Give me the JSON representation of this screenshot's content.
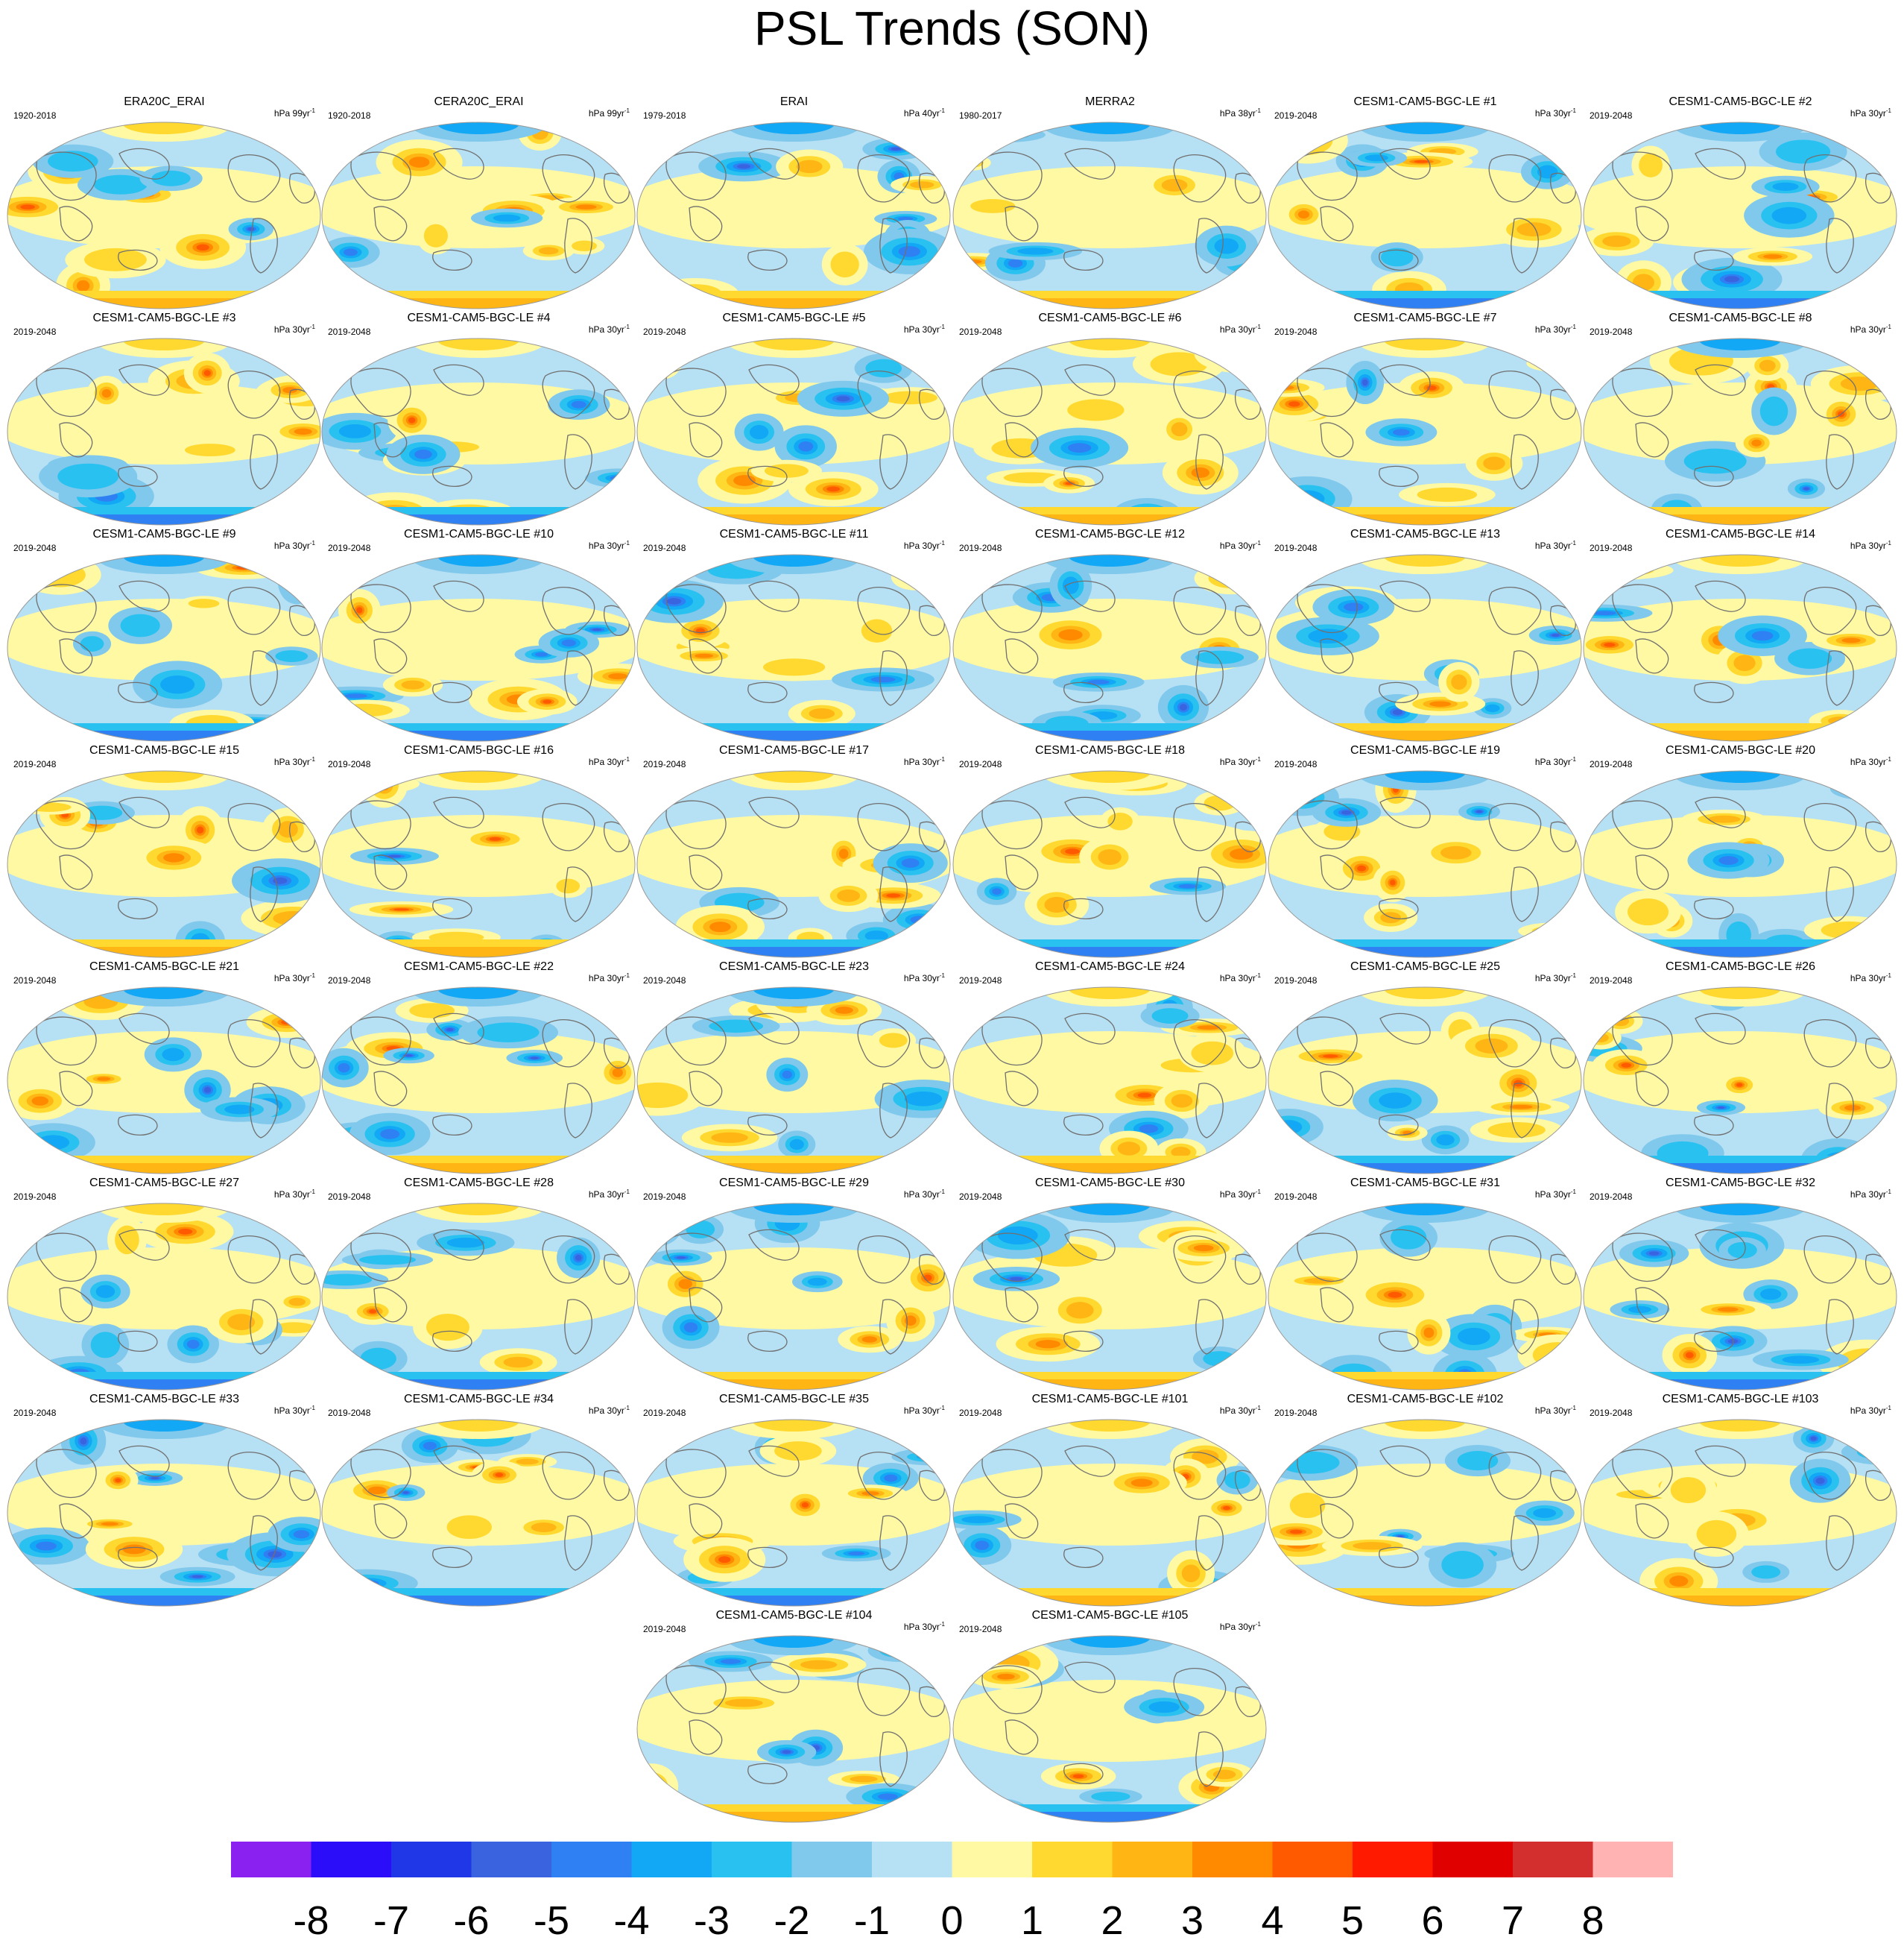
{
  "title": "PSL Trends (SON)",
  "units_label": "hPa",
  "chart_data": {
    "type": "heatmap",
    "description_kind": "grid of filled-contour world maps of sea level pressure trends",
    "colorbar": {
      "ticks": [
        "-8",
        "-7",
        "-6",
        "-5",
        "-4",
        "-3",
        "-2",
        "-1",
        "0",
        "1",
        "2",
        "3",
        "4",
        "5",
        "6",
        "7",
        "8"
      ],
      "colors": [
        "#8a21f0",
        "#2b0dfa",
        "#1f37e6",
        "#3a63e0",
        "#2f80f2",
        "#12a8f5",
        "#29c2f0",
        "#80c8ec",
        "#b6e0f3",
        "#fff9a3",
        "#ffd92f",
        "#ffb514",
        "#ff8a00",
        "#ff5a00",
        "#ff1a00",
        "#e00000",
        "#d32f2f",
        "#ffb3b3"
      ]
    },
    "panels": [
      {
        "name": "ERA20C_ERAI",
        "period": "1920-2018",
        "unit_scale": "99yr"
      },
      {
        "name": "CERA20C_ERAI",
        "period": "1920-2018",
        "unit_scale": "99yr"
      },
      {
        "name": "ERAI",
        "period": "1979-2018",
        "unit_scale": "40yr"
      },
      {
        "name": "MERRA2",
        "period": "1980-2017",
        "unit_scale": "38yr"
      },
      {
        "name": "CESM1-CAM5-BGC-LE #1",
        "period": "2019-2048",
        "unit_scale": "30yr"
      },
      {
        "name": "CESM1-CAM5-BGC-LE #2",
        "period": "2019-2048",
        "unit_scale": "30yr"
      },
      {
        "name": "CESM1-CAM5-BGC-LE #3",
        "period": "2019-2048",
        "unit_scale": "30yr"
      },
      {
        "name": "CESM1-CAM5-BGC-LE #4",
        "period": "2019-2048",
        "unit_scale": "30yr"
      },
      {
        "name": "CESM1-CAM5-BGC-LE #5",
        "period": "2019-2048",
        "unit_scale": "30yr"
      },
      {
        "name": "CESM1-CAM5-BGC-LE #6",
        "period": "2019-2048",
        "unit_scale": "30yr"
      },
      {
        "name": "CESM1-CAM5-BGC-LE #7",
        "period": "2019-2048",
        "unit_scale": "30yr"
      },
      {
        "name": "CESM1-CAM5-BGC-LE #8",
        "period": "2019-2048",
        "unit_scale": "30yr"
      },
      {
        "name": "CESM1-CAM5-BGC-LE #9",
        "period": "2019-2048",
        "unit_scale": "30yr"
      },
      {
        "name": "CESM1-CAM5-BGC-LE #10",
        "period": "2019-2048",
        "unit_scale": "30yr"
      },
      {
        "name": "CESM1-CAM5-BGC-LE #11",
        "period": "2019-2048",
        "unit_scale": "30yr"
      },
      {
        "name": "CESM1-CAM5-BGC-LE #12",
        "period": "2019-2048",
        "unit_scale": "30yr"
      },
      {
        "name": "CESM1-CAM5-BGC-LE #13",
        "period": "2019-2048",
        "unit_scale": "30yr"
      },
      {
        "name": "CESM1-CAM5-BGC-LE #14",
        "period": "2019-2048",
        "unit_scale": "30yr"
      },
      {
        "name": "CESM1-CAM5-BGC-LE #15",
        "period": "2019-2048",
        "unit_scale": "30yr"
      },
      {
        "name": "CESM1-CAM5-BGC-LE #16",
        "period": "2019-2048",
        "unit_scale": "30yr"
      },
      {
        "name": "CESM1-CAM5-BGC-LE #17",
        "period": "2019-2048",
        "unit_scale": "30yr"
      },
      {
        "name": "CESM1-CAM5-BGC-LE #18",
        "period": "2019-2048",
        "unit_scale": "30yr"
      },
      {
        "name": "CESM1-CAM5-BGC-LE #19",
        "period": "2019-2048",
        "unit_scale": "30yr"
      },
      {
        "name": "CESM1-CAM5-BGC-LE #20",
        "period": "2019-2048",
        "unit_scale": "30yr"
      },
      {
        "name": "CESM1-CAM5-BGC-LE #21",
        "period": "2019-2048",
        "unit_scale": "30yr"
      },
      {
        "name": "CESM1-CAM5-BGC-LE #22",
        "period": "2019-2048",
        "unit_scale": "30yr"
      },
      {
        "name": "CESM1-CAM5-BGC-LE #23",
        "period": "2019-2048",
        "unit_scale": "30yr"
      },
      {
        "name": "CESM1-CAM5-BGC-LE #24",
        "period": "2019-2048",
        "unit_scale": "30yr"
      },
      {
        "name": "CESM1-CAM5-BGC-LE #25",
        "period": "2019-2048",
        "unit_scale": "30yr"
      },
      {
        "name": "CESM1-CAM5-BGC-LE #26",
        "period": "2019-2048",
        "unit_scale": "30yr"
      },
      {
        "name": "CESM1-CAM5-BGC-LE #27",
        "period": "2019-2048",
        "unit_scale": "30yr"
      },
      {
        "name": "CESM1-CAM5-BGC-LE #28",
        "period": "2019-2048",
        "unit_scale": "30yr"
      },
      {
        "name": "CESM1-CAM5-BGC-LE #29",
        "period": "2019-2048",
        "unit_scale": "30yr"
      },
      {
        "name": "CESM1-CAM5-BGC-LE #30",
        "period": "2019-2048",
        "unit_scale": "30yr"
      },
      {
        "name": "CESM1-CAM5-BGC-LE #31",
        "period": "2019-2048",
        "unit_scale": "30yr"
      },
      {
        "name": "CESM1-CAM5-BGC-LE #32",
        "period": "2019-2048",
        "unit_scale": "30yr"
      },
      {
        "name": "CESM1-CAM5-BGC-LE #33",
        "period": "2019-2048",
        "unit_scale": "30yr"
      },
      {
        "name": "CESM1-CAM5-BGC-LE #34",
        "period": "2019-2048",
        "unit_scale": "30yr"
      },
      {
        "name": "CESM1-CAM5-BGC-LE #35",
        "period": "2019-2048",
        "unit_scale": "30yr"
      },
      {
        "name": "CESM1-CAM5-BGC-LE #101",
        "period": "2019-2048",
        "unit_scale": "30yr"
      },
      {
        "name": "CESM1-CAM5-BGC-LE #102",
        "period": "2019-2048",
        "unit_scale": "30yr"
      },
      {
        "name": "CESM1-CAM5-BGC-LE #103",
        "period": "2019-2048",
        "unit_scale": "30yr"
      },
      {
        "name": "CESM1-CAM5-BGC-LE #104",
        "period": "2019-2048",
        "unit_scale": "30yr"
      },
      {
        "name": "CESM1-CAM5-BGC-LE #105",
        "period": "2019-2048",
        "unit_scale": "30yr"
      }
    ]
  }
}
